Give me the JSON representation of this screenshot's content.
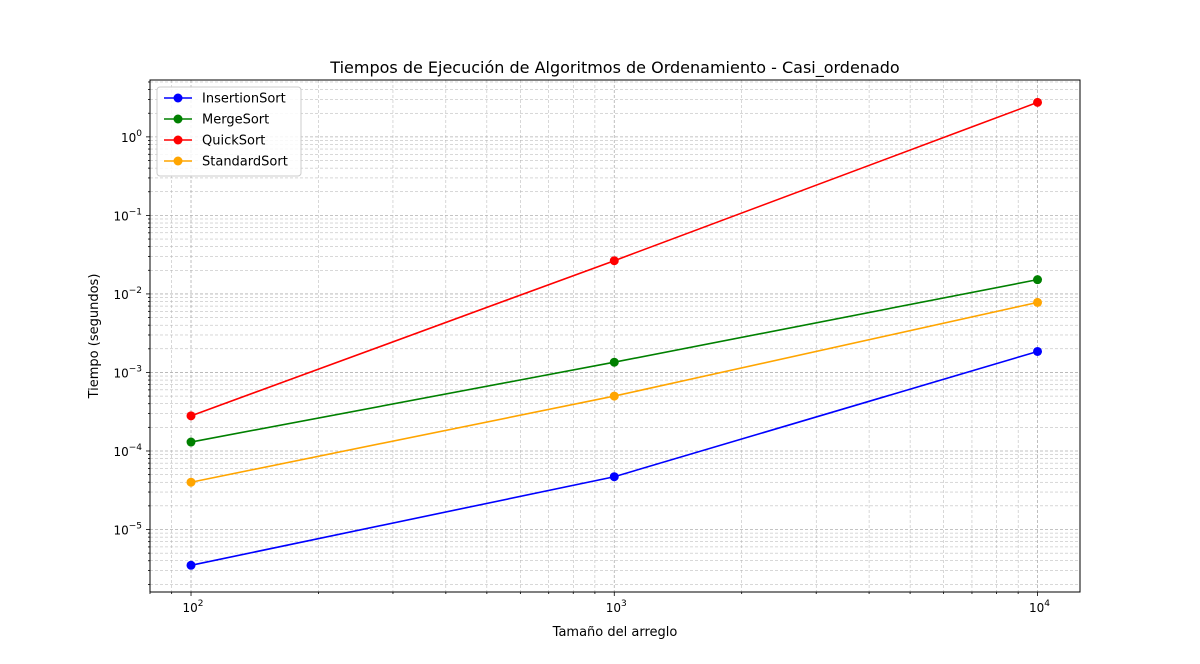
{
  "chart_data": {
    "type": "line",
    "title": "Tiempos de Ejecución de Algoritmos de Ordenamiento - Casi_ordenado",
    "xlabel": "Tamaño del arreglo",
    "ylabel": "Tiempo (segundos)",
    "xscale": "log",
    "yscale": "log",
    "x": [
      100,
      1000,
      10000
    ],
    "xlim": [
      80,
      12600
    ],
    "ylim": [
      1.6e-06,
      5.3
    ],
    "x_ticks": [
      {
        "base": "10",
        "exp": "2",
        "value": 100
      },
      {
        "base": "10",
        "exp": "3",
        "value": 1000
      },
      {
        "base": "10",
        "exp": "4",
        "value": 10000
      }
    ],
    "y_ticks": [
      {
        "base": "10",
        "exp": "−5",
        "value": 1e-05
      },
      {
        "base": "10",
        "exp": "−4",
        "value": 0.0001
      },
      {
        "base": "10",
        "exp": "−3",
        "value": 0.001
      },
      {
        "base": "10",
        "exp": "−2",
        "value": 0.01
      },
      {
        "base": "10",
        "exp": "−1",
        "value": 0.1
      },
      {
        "base": "10",
        "exp": "0",
        "value": 1
      }
    ],
    "grid": true,
    "legend_position": "top-left",
    "series": [
      {
        "name": "InsertionSort",
        "color": "#0000ff",
        "values": [
          3.5e-06,
          4.7e-05,
          0.00185
        ]
      },
      {
        "name": "MergeSort",
        "color": "#008000",
        "values": [
          0.00013,
          0.00135,
          0.0152
        ]
      },
      {
        "name": "QuickSort",
        "color": "#ff0000",
        "values": [
          0.00028,
          0.0265,
          2.75
        ]
      },
      {
        "name": "StandardSort",
        "color": "#ffa500",
        "values": [
          4e-05,
          0.0005,
          0.0078
        ]
      }
    ]
  }
}
